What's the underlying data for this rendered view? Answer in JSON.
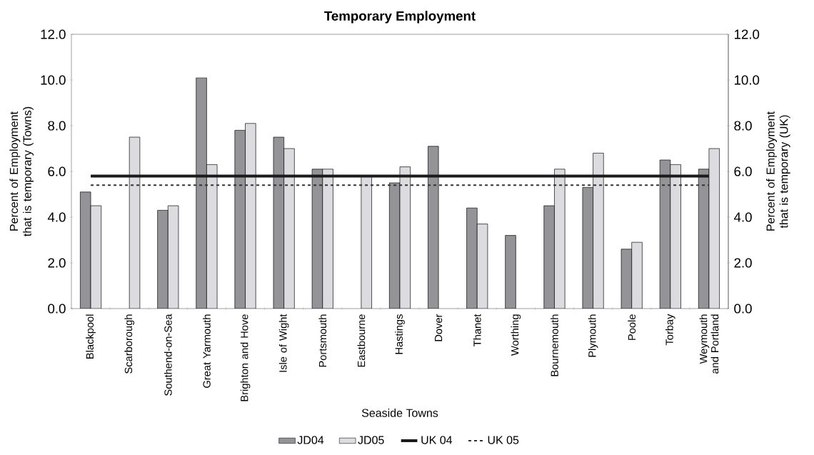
{
  "chart_data": {
    "type": "bar",
    "title": "Temporary Employment",
    "xlabel": "Seaside Towns",
    "ylabel": "Percent of Employment that is temporary (Towns)",
    "y2label": "Percent of Employment that is temporary (UK)",
    "categories": [
      "Blackpool",
      "Scarborough",
      "Southend-on-Sea",
      "Great Yarmouth",
      "Brighton and Hove",
      "Isle of Wight",
      "Portsmouth",
      "Eastbourne",
      "Hastings",
      "Dover",
      "Thanet",
      "Worthing",
      "Bournemouth",
      "Plymouth",
      "Poole",
      "Torbay",
      "Weymouth and Portland"
    ],
    "series": [
      {
        "name": "JD04",
        "color": "#939398",
        "values": [
          5.1,
          null,
          4.3,
          10.1,
          7.8,
          7.5,
          6.1,
          null,
          5.5,
          7.1,
          4.4,
          3.2,
          4.5,
          5.3,
          2.6,
          6.5,
          6.1
        ]
      },
      {
        "name": "JD05",
        "color": "#dcdce0",
        "values": [
          4.5,
          7.5,
          4.5,
          6.3,
          8.1,
          7.0,
          6.1,
          5.8,
          6.2,
          null,
          3.7,
          null,
          6.1,
          6.8,
          2.9,
          6.3,
          7.0
        ]
      },
      {
        "name": "UK 04",
        "type": "line",
        "axis": "y2",
        "color": "#1a1a1a",
        "line_style": "solid",
        "values": [
          5.8,
          5.8,
          5.8,
          5.8,
          5.8,
          5.8,
          5.8,
          5.8,
          5.8,
          5.8,
          5.8,
          5.8,
          5.8,
          5.8,
          5.8,
          5.8,
          5.8
        ]
      },
      {
        "name": "UK 05",
        "type": "line",
        "axis": "y2",
        "color": "#333333",
        "line_style": "dashed",
        "values": [
          5.4,
          5.4,
          5.4,
          5.4,
          5.4,
          5.4,
          5.4,
          5.4,
          5.4,
          5.4,
          5.4,
          5.4,
          5.4,
          5.4,
          5.4,
          5.4,
          5.4
        ]
      }
    ],
    "ylim": [
      0,
      12
    ],
    "yticks": [
      {
        "value": 0,
        "label": "0.0"
      },
      {
        "value": 2,
        "label": "2.0"
      },
      {
        "value": 4,
        "label": "4.0"
      },
      {
        "value": 6,
        "label": "6.0"
      },
      {
        "value": 8,
        "label": "8.0"
      },
      {
        "value": 10,
        "label": "10.0"
      },
      {
        "value": 12,
        "label": "12.0"
      }
    ],
    "y2lim": [
      0,
      12
    ],
    "y2ticks": [
      {
        "value": 0,
        "label": "0.0"
      },
      {
        "value": 2,
        "label": "2.0"
      },
      {
        "value": 4,
        "label": "4.0"
      },
      {
        "value": 6,
        "label": "6.0"
      },
      {
        "value": 8,
        "label": "8.0"
      },
      {
        "value": 10,
        "label": "10.0"
      },
      {
        "value": 12,
        "label": "12.0"
      }
    ],
    "legend": "bottom"
  }
}
